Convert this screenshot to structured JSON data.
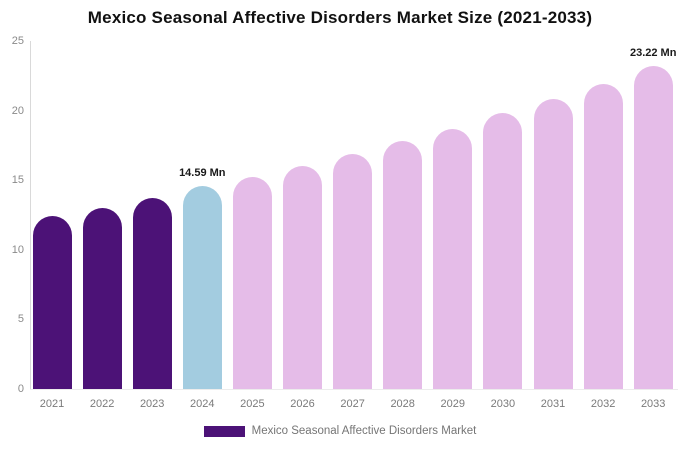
{
  "chart_data": {
    "type": "bar",
    "title": "Mexico Seasonal Affective Disorders Market Size (2021-2033)",
    "xlabel": "",
    "ylabel": "",
    "ylim": [
      0,
      25
    ],
    "yticks": [
      0,
      5,
      10,
      15,
      20,
      25
    ],
    "grid": false,
    "legend_position": "bottom-center",
    "categories": [
      "2021",
      "2022",
      "2023",
      "2024",
      "2025",
      "2026",
      "2027",
      "2028",
      "2029",
      "2030",
      "2031",
      "2032",
      "2033"
    ],
    "values": [
      12.4,
      13.0,
      13.7,
      14.59,
      15.2,
      16.0,
      16.9,
      17.8,
      18.7,
      19.8,
      20.8,
      21.9,
      23.22
    ],
    "unit": "Mn",
    "bar_styles": [
      "historical",
      "historical",
      "historical",
      "current",
      "forecast",
      "forecast",
      "forecast",
      "forecast",
      "forecast",
      "forecast",
      "forecast",
      "forecast",
      "forecast"
    ],
    "colors": {
      "historical": "#4C1277",
      "current": "#A3CCE0",
      "forecast": "#E5BCE8"
    },
    "annotations": [
      {
        "index": 3,
        "text": "14.59 Mn"
      },
      {
        "index": 12,
        "text": "23.22 Mn"
      }
    ],
    "legend": {
      "label": "Mexico Seasonal Affective Disorders Market",
      "swatch_color": "#4C1277"
    }
  }
}
